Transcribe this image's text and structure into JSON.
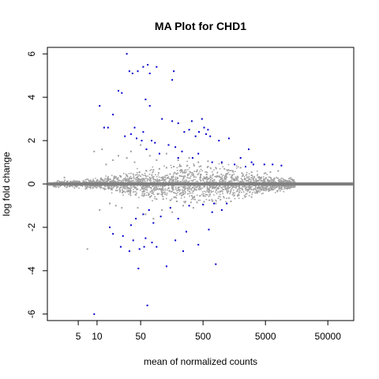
{
  "chart_data": {
    "type": "scatter",
    "title": "MA Plot for CHD1",
    "xlabel": "mean of normalized counts",
    "ylabel": "log fold change",
    "x_scale": "log",
    "x_ticks": [
      5,
      10,
      50,
      500,
      5000,
      50000
    ],
    "x_tick_labels": [
      "5",
      "10",
      "50",
      "500",
      "5000",
      "50000"
    ],
    "xlim": [
      1.6,
      130000
    ],
    "ylim": [
      -6.3,
      6.3
    ],
    "y_ticks": [
      -6,
      -4,
      -2,
      0,
      2,
      4,
      6
    ],
    "y_tick_labels": [
      "-6",
      "-4",
      "-2",
      "0",
      "2",
      "4",
      "6"
    ],
    "reference_line": {
      "y": 0,
      "color": "#7f7f7f"
    },
    "grid": false,
    "legend": "none",
    "colors": {
      "nonsignificant": "#a0a0a0",
      "significant": "#0000cd"
    },
    "series": [
      {
        "significant": false,
        "points": [
          [
            2.2,
            0.05
          ],
          [
            3,
            -0.04
          ],
          [
            4,
            0.08
          ],
          [
            5,
            -0.06
          ],
          [
            6,
            0.1
          ],
          [
            7,
            -0.08
          ],
          [
            8,
            0.12
          ],
          [
            9,
            -0.1
          ],
          [
            10,
            0.15
          ],
          [
            11,
            -0.12
          ],
          [
            12,
            0.2
          ],
          [
            13,
            -0.2
          ],
          [
            15,
            0.25
          ],
          [
            17,
            -0.22
          ],
          [
            19,
            0.3
          ],
          [
            21,
            -0.3
          ],
          [
            24,
            0.35
          ],
          [
            27,
            -0.35
          ],
          [
            30,
            0.4
          ],
          [
            34,
            -0.42
          ],
          [
            38,
            0.45
          ],
          [
            42,
            -0.5
          ],
          [
            48,
            0.55
          ],
          [
            55,
            -0.55
          ],
          [
            62,
            0.6
          ],
          [
            70,
            -0.6
          ],
          [
            80,
            0.65
          ],
          [
            90,
            -0.7
          ],
          [
            100,
            0.7
          ],
          [
            115,
            -0.7
          ],
          [
            130,
            0.75
          ],
          [
            150,
            -0.75
          ],
          [
            170,
            0.8
          ],
          [
            190,
            -0.8
          ],
          [
            220,
            0.82
          ],
          [
            250,
            -0.82
          ],
          [
            280,
            0.85
          ],
          [
            320,
            -0.85
          ],
          [
            360,
            0.85
          ],
          [
            400,
            -0.85
          ],
          [
            460,
            0.82
          ],
          [
            520,
            -0.82
          ],
          [
            600,
            0.8
          ],
          [
            700,
            -0.78
          ],
          [
            800,
            0.75
          ],
          [
            950,
            -0.72
          ],
          [
            1100,
            0.7
          ],
          [
            1300,
            -0.65
          ],
          [
            1500,
            0.6
          ],
          [
            1800,
            -0.55
          ],
          [
            2100,
            0.5
          ],
          [
            2500,
            -0.45
          ],
          [
            3000,
            0.4
          ],
          [
            3600,
            -0.35
          ],
          [
            4300,
            0.3
          ],
          [
            5200,
            -0.25
          ],
          [
            6200,
            0.2
          ],
          [
            7500,
            -0.15
          ],
          [
            9000,
            0.12
          ],
          [
            30,
            1.2
          ],
          [
            35,
            1.5
          ],
          [
            40,
            1.0
          ],
          [
            45,
            -1.1
          ],
          [
            50,
            1.8
          ],
          [
            60,
            -1.4
          ],
          [
            70,
            1.3
          ],
          [
            80,
            -1.6
          ],
          [
            90,
            1.1
          ],
          [
            110,
            -1.2
          ],
          [
            130,
            1.4
          ],
          [
            160,
            -1.3
          ],
          [
            200,
            1.1
          ],
          [
            240,
            -1.0
          ],
          [
            300,
            1.2
          ],
          [
            350,
            -1.1
          ],
          [
            420,
            1.0
          ],
          [
            500,
            -0.95
          ],
          [
            600,
            1.05
          ],
          [
            800,
            -0.9
          ],
          [
            1000,
            0.95
          ],
          [
            1400,
            -0.8
          ],
          [
            2000,
            0.75
          ],
          [
            3000,
            -0.6
          ],
          [
            5000,
            0.5
          ],
          [
            6000,
            0.55
          ],
          [
            8000,
            0.6
          ],
          [
            12,
            1.6
          ],
          [
            11,
            -1.2
          ],
          [
            14,
            0.9
          ],
          [
            16,
            -0.9
          ],
          [
            18,
            1.1
          ],
          [
            20,
            -1.0
          ],
          [
            22,
            1.3
          ],
          [
            25,
            -1.1
          ],
          [
            9,
            1.5
          ],
          [
            7,
            -3.0
          ],
          [
            3,
            0.3
          ],
          [
            2,
            -0.1
          ]
        ]
      },
      {
        "significant": true,
        "points": [
          [
            30,
            6.0
          ],
          [
            33,
            5.2
          ],
          [
            37,
            5.1
          ],
          [
            45,
            5.2
          ],
          [
            55,
            5.4
          ],
          [
            65,
            5.5
          ],
          [
            90,
            5.4
          ],
          [
            70,
            5.1
          ],
          [
            170,
            5.2
          ],
          [
            160,
            4.8
          ],
          [
            22,
            4.3
          ],
          [
            25,
            4.2
          ],
          [
            11,
            3.6
          ],
          [
            18,
            3.2
          ],
          [
            60,
            3.9
          ],
          [
            70,
            3.6
          ],
          [
            110,
            3.0
          ],
          [
            160,
            2.9
          ],
          [
            200,
            2.8
          ],
          [
            330,
            2.9
          ],
          [
            480,
            3.0
          ],
          [
            430,
            2.4
          ],
          [
            520,
            2.6
          ],
          [
            600,
            2.5
          ],
          [
            300,
            2.5
          ],
          [
            250,
            2.4
          ],
          [
            380,
            2.2
          ],
          [
            560,
            2.3
          ],
          [
            650,
            2.2
          ],
          [
            900,
            2.0
          ],
          [
            1300,
            2.1
          ],
          [
            15,
            2.6
          ],
          [
            28,
            2.2
          ],
          [
            35,
            2.3
          ],
          [
            43,
            2.1
          ],
          [
            55,
            2.4
          ],
          [
            75,
            2.0
          ],
          [
            85,
            1.9
          ],
          [
            140,
            1.8
          ],
          [
            180,
            1.7
          ],
          [
            230,
            1.5
          ],
          [
            340,
            1.2
          ],
          [
            420,
            1.4
          ],
          [
            700,
            1.0
          ],
          [
            1000,
            1.0
          ],
          [
            1600,
            0.9
          ],
          [
            2400,
            0.8
          ],
          [
            3200,
            0.9
          ],
          [
            13,
            2.6
          ],
          [
            40,
            2.6
          ],
          [
            52,
            2.0
          ],
          [
            62,
            1.6
          ],
          [
            100,
            1.4
          ],
          [
            200,
            1.2
          ],
          [
            3000,
            1.0
          ],
          [
            4800,
            0.9
          ],
          [
            6500,
            0.9
          ],
          [
            9000,
            0.85
          ],
          [
            2700,
            1.6
          ],
          [
            2000,
            1.2
          ],
          [
            16,
            -2.0
          ],
          [
            18,
            -2.3
          ],
          [
            24,
            -2.9
          ],
          [
            33,
            -3.1
          ],
          [
            38,
            -2.6
          ],
          [
            48,
            -3.0
          ],
          [
            57,
            -2.9
          ],
          [
            76,
            -2.7
          ],
          [
            46,
            -3.9
          ],
          [
            64,
            -5.6
          ],
          [
            90,
            -2.9
          ],
          [
            240,
            -3.1
          ],
          [
            130,
            -3.8
          ],
          [
            180,
            -2.6
          ],
          [
            270,
            -2.2
          ],
          [
            420,
            -2.8
          ],
          [
            620,
            -2.1
          ],
          [
            800,
            -3.7
          ],
          [
            35,
            -1.9
          ],
          [
            42,
            -1.6
          ],
          [
            55,
            -1.4
          ],
          [
            68,
            -1.2
          ],
          [
            80,
            -1.8
          ],
          [
            105,
            -1.5
          ],
          [
            150,
            -1.1
          ],
          [
            300,
            -1.0
          ],
          [
            500,
            -0.95
          ],
          [
            750,
            -0.9
          ],
          [
            1200,
            -0.9
          ],
          [
            26,
            -2.4
          ],
          [
            60,
            -2.5
          ],
          [
            9,
            -6.0
          ],
          [
            700,
            -1.3
          ],
          [
            1000,
            -1.2
          ],
          [
            200,
            -1.6
          ]
        ]
      }
    ]
  }
}
